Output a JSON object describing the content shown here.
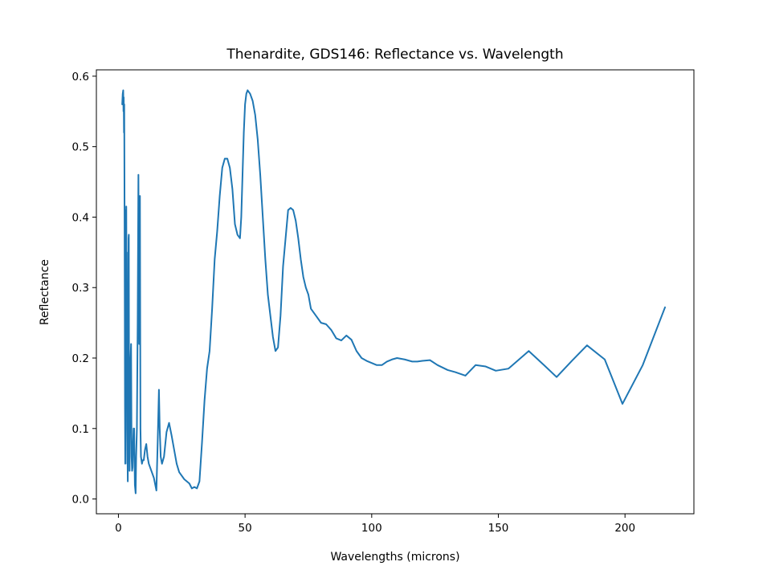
{
  "chart_data": {
    "type": "line",
    "title": "Thenardite, GDS146: Reflectance vs. Wavelength",
    "xlabel": "Wavelengths (microns)",
    "ylabel": "Reflectance",
    "xlim": [
      -8.7,
      227.2
    ],
    "ylim": [
      -0.021,
      0.609
    ],
    "xticks": [
      0,
      50,
      100,
      150,
      200
    ],
    "xtick_labels": [
      "0",
      "50",
      "100",
      "150",
      "200"
    ],
    "yticks": [
      0.0,
      0.1,
      0.2,
      0.3,
      0.4,
      0.5,
      0.6
    ],
    "ytick_labels": [
      "0.0",
      "0.1",
      "0.2",
      "0.3",
      "0.4",
      "0.5",
      "0.6"
    ],
    "grid": false,
    "line_color": "#1f77b4",
    "series": [
      {
        "x": [
          1.5,
          1.7,
          1.9,
          2.0,
          2.1,
          2.2,
          2.3,
          2.4,
          2.5,
          2.6,
          2.7,
          2.8,
          2.9,
          3.0,
          3.1,
          3.2,
          3.3,
          3.4,
          3.5,
          3.6,
          3.7,
          3.8,
          3.9,
          4.0,
          4.1,
          4.2,
          4.4,
          4.6,
          4.8,
          5.0,
          5.2,
          5.4,
          5.6,
          5.8,
          6.0,
          6.2,
          6.5,
          6.8,
          7.0,
          7.3,
          7.6,
          7.9,
          8.2,
          8.5,
          8.7,
          8.9,
          9.1,
          9.3,
          9.6,
          10.0,
          10.5,
          11.0,
          11.5,
          12.0,
          13.0,
          14.0,
          15.0,
          15.5,
          16.0,
          16.3,
          16.7,
          17.2,
          18.0,
          19.0,
          20.0,
          21.0,
          22.0,
          23.0,
          24.0,
          26.0,
          28.0,
          29.0,
          30.0,
          31.0,
          32.0,
          33.0,
          34.0,
          35.0,
          36.0,
          37.0,
          38.0,
          39.0,
          40.0,
          41.0,
          42.0,
          43.0,
          44.0,
          45.0,
          46.0,
          47.0,
          48.0,
          48.5,
          49.0,
          49.5,
          50.0,
          50.5,
          51.0,
          52.0,
          53.0,
          54.0,
          55.0,
          56.0,
          57.0,
          58.0,
          59.0,
          60.0,
          61.0,
          62.0,
          63.0,
          64.0,
          65.0,
          66.0,
          66.5,
          67.0,
          68.0,
          69.0,
          70.0,
          71.0,
          72.0,
          73.0,
          74.0,
          75.0,
          76.0,
          78.0,
          80.0,
          82.0,
          84.0,
          86.0,
          88.0,
          90.0,
          92.0,
          94.0,
          96.0,
          98.0,
          100.0,
          102.0,
          104.0,
          106.0,
          108.0,
          110.0,
          113.0,
          116.0,
          118.0,
          120.0,
          123.0,
          126.0,
          130.0,
          133.0,
          137.0,
          141.0,
          145.0,
          149.0,
          154.0,
          162.0,
          168.0,
          173.0,
          179.0,
          185.0,
          192.0,
          199.0,
          207.0,
          215.8
        ],
        "y": [
          0.56,
          0.575,
          0.58,
          0.55,
          0.57,
          0.52,
          0.56,
          0.44,
          0.3,
          0.13,
          0.05,
          0.2,
          0.41,
          0.32,
          0.415,
          0.3,
          0.35,
          0.1,
          0.05,
          0.06,
          0.025,
          0.15,
          0.23,
          0.37,
          0.375,
          0.12,
          0.04,
          0.13,
          0.2,
          0.22,
          0.06,
          0.04,
          0.045,
          0.08,
          0.1,
          0.1,
          0.02,
          0.008,
          0.06,
          0.1,
          0.25,
          0.46,
          0.22,
          0.43,
          0.1,
          0.06,
          0.055,
          0.05,
          0.055,
          0.055,
          0.07,
          0.078,
          0.06,
          0.05,
          0.04,
          0.03,
          0.012,
          0.08,
          0.155,
          0.1,
          0.06,
          0.05,
          0.06,
          0.095,
          0.108,
          0.09,
          0.07,
          0.05,
          0.038,
          0.028,
          0.022,
          0.015,
          0.017,
          0.015,
          0.025,
          0.08,
          0.14,
          0.185,
          0.21,
          0.27,
          0.34,
          0.38,
          0.43,
          0.47,
          0.483,
          0.483,
          0.47,
          0.44,
          0.39,
          0.375,
          0.37,
          0.4,
          0.46,
          0.52,
          0.56,
          0.575,
          0.58,
          0.575,
          0.565,
          0.545,
          0.51,
          0.46,
          0.4,
          0.34,
          0.29,
          0.26,
          0.23,
          0.21,
          0.215,
          0.26,
          0.33,
          0.37,
          0.39,
          0.41,
          0.413,
          0.41,
          0.395,
          0.37,
          0.34,
          0.315,
          0.3,
          0.29,
          0.27,
          0.26,
          0.25,
          0.248,
          0.24,
          0.228,
          0.225,
          0.232,
          0.226,
          0.21,
          0.2,
          0.196,
          0.193,
          0.19,
          0.19,
          0.195,
          0.198,
          0.2,
          0.198,
          0.195,
          0.195,
          0.196,
          0.197,
          0.19,
          0.183,
          0.18,
          0.175,
          0.19,
          0.188,
          0.182,
          0.185,
          0.21,
          0.19,
          0.173,
          0.196,
          0.218,
          0.198,
          0.135,
          0.19,
          0.272
        ]
      }
    ]
  }
}
